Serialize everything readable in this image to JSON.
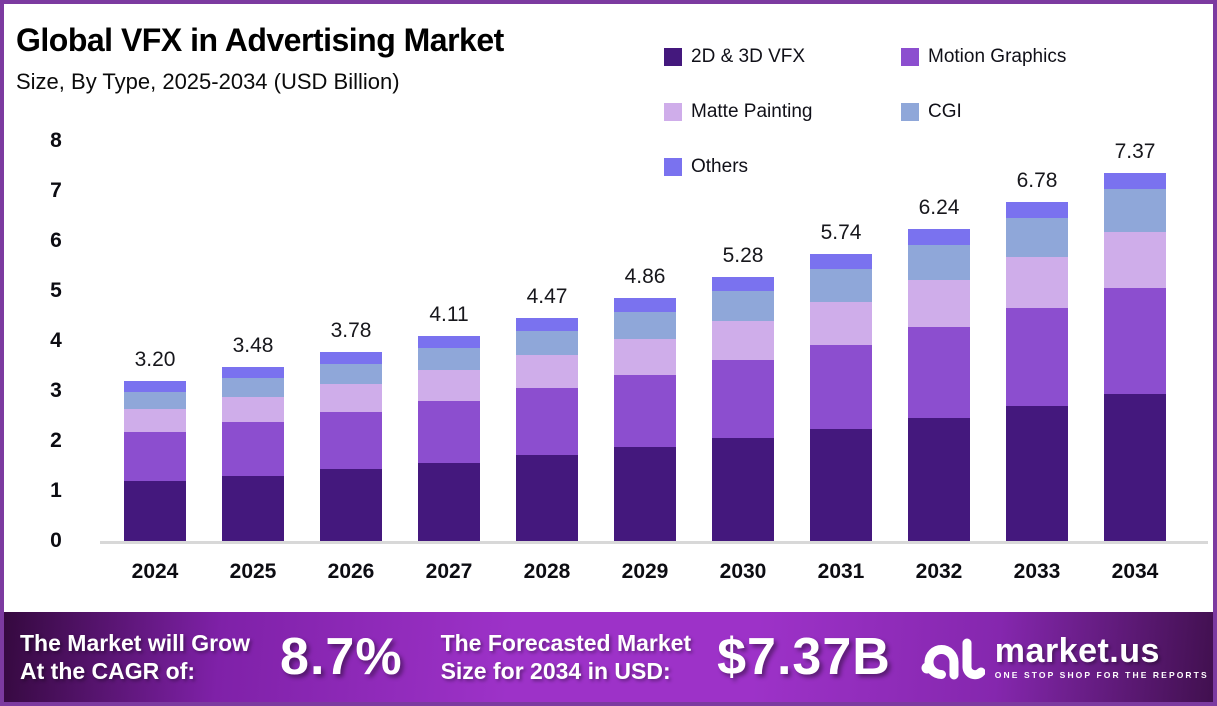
{
  "header": {
    "title": "Global VFX in Advertising Market",
    "subtitle": "Size, By Type, 2025-2034 (USD Billion)"
  },
  "chart_data": {
    "type": "bar",
    "variant": "stacked",
    "title": "Global VFX in Advertising Market",
    "subtitle": "Size, By Type, 2025-2034 (USD Billion)",
    "unit": "USD Billion",
    "categories": [
      "2024",
      "2025",
      "2026",
      "2027",
      "2028",
      "2029",
      "2030",
      "2031",
      "2032",
      "2033",
      "2034"
    ],
    "totals": [
      3.2,
      3.48,
      3.78,
      4.11,
      4.47,
      4.86,
      5.28,
      5.74,
      6.24,
      6.78,
      7.37
    ],
    "total_labels": [
      "3.20",
      "3.48",
      "3.78",
      "4.11",
      "4.47",
      "4.86",
      "5.28",
      "5.74",
      "6.24",
      "6.78",
      "7.37"
    ],
    "series": [
      {
        "name": "2D & 3D VFX",
        "color": "#44187d",
        "values": [
          1.2,
          1.31,
          1.44,
          1.57,
          1.72,
          1.88,
          2.06,
          2.25,
          2.47,
          2.7,
          2.95
        ]
      },
      {
        "name": "Motion Graphics",
        "color": "#8c4ecf",
        "values": [
          0.99,
          1.07,
          1.15,
          1.24,
          1.34,
          1.45,
          1.56,
          1.68,
          1.81,
          1.96,
          2.11
        ]
      },
      {
        "name": "Matte Painting",
        "color": "#cfadea",
        "values": [
          0.46,
          0.51,
          0.55,
          0.61,
          0.66,
          0.72,
          0.79,
          0.86,
          0.94,
          1.03,
          1.13
        ]
      },
      {
        "name": "CGI",
        "color": "#8fa7d9",
        "values": [
          0.34,
          0.37,
          0.41,
          0.45,
          0.49,
          0.54,
          0.59,
          0.65,
          0.71,
          0.78,
          0.86
        ]
      },
      {
        "name": "Others",
        "color": "#7a72ef",
        "values": [
          0.21,
          0.22,
          0.23,
          0.24,
          0.26,
          0.27,
          0.28,
          0.3,
          0.31,
          0.31,
          0.32
        ]
      }
    ],
    "y_axis": {
      "min": 0,
      "max": 8,
      "ticks": [
        0,
        1,
        2,
        3,
        4,
        5,
        6,
        7,
        8
      ]
    },
    "legend_position": "top-right",
    "grid": false
  },
  "banner": {
    "cagr_label_line1": "The Market will Grow",
    "cagr_label_line2": "At the CAGR of:",
    "cagr_value": "8.7%",
    "forecast_label_line1": "The Forecasted Market",
    "forecast_label_line2": "Size for 2034 in USD:",
    "forecast_value": "$7.37B",
    "brand_name": "market.us",
    "brand_tagline": "ONE STOP SHOP FOR THE REPORTS"
  },
  "colors": {
    "frame_border": "#7c3aa0",
    "axis_line": "#d8d8d8",
    "banner_gradient_edge": "#35093f",
    "banner_gradient_center": "#9d32c8",
    "text_dark": "#0c0c12",
    "banner_text": "#ffffff"
  }
}
